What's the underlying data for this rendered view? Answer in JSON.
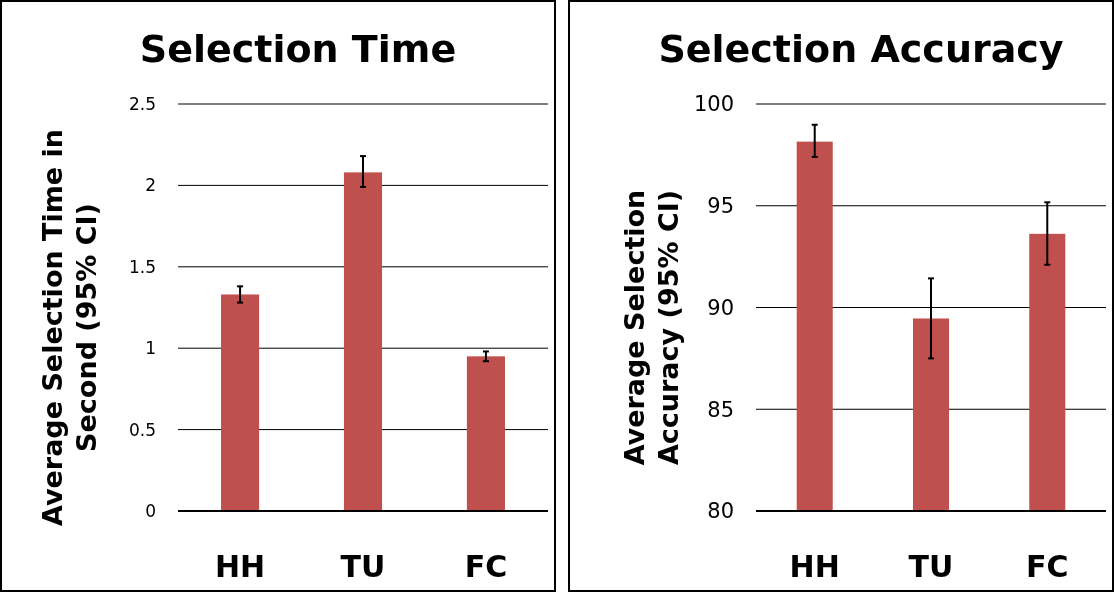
{
  "chart_data": [
    {
      "type": "bar",
      "title": "Selection Time",
      "ylabel": "Average Selection Time in Second (95% CI)",
      "categories": [
        "HH",
        "TU",
        "FC"
      ],
      "values": [
        1.33,
        2.08,
        0.95
      ],
      "errors": [
        [
          1.28,
          1.38
        ],
        [
          1.99,
          2.18
        ],
        [
          0.92,
          0.98
        ]
      ],
      "color": "#c0504d",
      "ylim": [
        0,
        2.5
      ],
      "yticks": [
        0,
        0.5,
        1,
        1.5,
        2,
        2.5
      ],
      "grid": "y"
    },
    {
      "type": "bar",
      "title": "Selection Accuracy",
      "ylabel": "Average Selection Accuracy (95% CI)",
      "categories": [
        "HH",
        "TU",
        "FC"
      ],
      "values": [
        98.15,
        89.46,
        93.62
      ],
      "errors": [
        [
          97.4,
          98.98
        ],
        [
          87.5,
          91.43
        ],
        [
          92.1,
          95.17
        ]
      ],
      "color": "#c0504d",
      "ylim": [
        80,
        100
      ],
      "yticks": [
        80,
        85,
        90,
        95,
        100
      ],
      "grid": "y"
    }
  ]
}
